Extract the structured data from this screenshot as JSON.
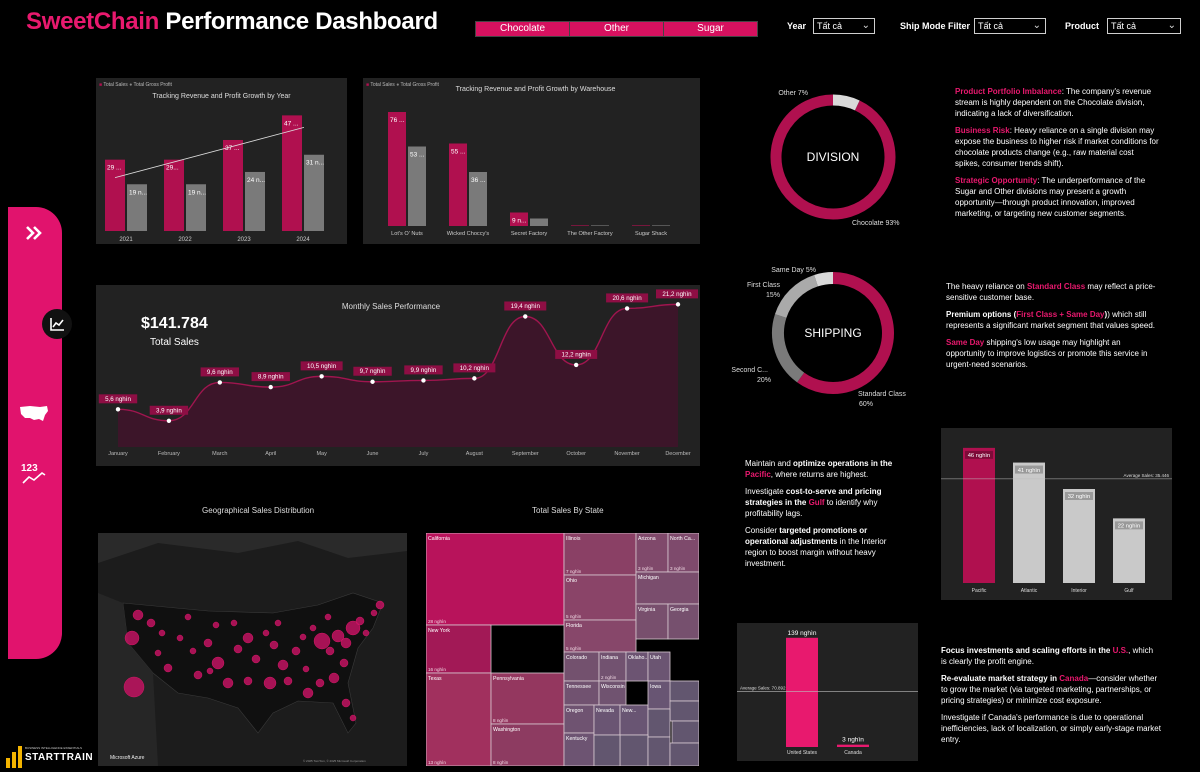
{
  "header": {
    "title_brand": "SweetChain",
    "title_rest": " Performance Dashboard",
    "division_buttons": [
      "Chocolate",
      "Other",
      "Sugar"
    ],
    "filters": [
      {
        "label": "Year",
        "value": "Tất cả"
      },
      {
        "label": "Ship Mode Filter",
        "value": "Tất cả"
      },
      {
        "label": "Product",
        "value": "Tất cả"
      }
    ]
  },
  "colors": {
    "accent": "#e8196e",
    "bar_primary": "#b0104f",
    "bar_secondary": "#7a7a7a",
    "panel": "#222222"
  },
  "sidebar": {
    "icons": [
      "double-chevron-right-icon",
      "line-chart-icon",
      "us-map-icon",
      "number-trend-icon"
    ]
  },
  "logos": {
    "starttrain_tag": "BUSINESS INTELLIGENCE ESSENTIALS",
    "starttrain": "STARTTRAIN",
    "azure": "Microsoft Azure"
  },
  "year_chart": {
    "title": "Tracking Revenue and Profit Growth by Year",
    "legend": [
      "Total Sales",
      "Total Gross Profit"
    ],
    "chart_data": {
      "type": "bar",
      "categories": [
        "2021",
        "2022",
        "2023",
        "2024"
      ],
      "series": [
        {
          "name": "Total Sales",
          "values": [
            29,
            29,
            37,
            47
          ],
          "labels": [
            "29 ...",
            "29...",
            "37 ...",
            "47 ..."
          ]
        },
        {
          "name": "Total Gross Profit",
          "values": [
            19,
            19,
            24,
            31
          ],
          "labels": [
            "19 n...",
            "19 n...",
            "24 n...",
            "31 n..."
          ]
        }
      ],
      "ylim": [
        0,
        50
      ]
    }
  },
  "warehouse_chart": {
    "title": "Tracking Revenue and Profit Growth by Warehouse",
    "legend": [
      "Total Sales",
      "Total Gross Profit"
    ],
    "chart_data": {
      "type": "bar",
      "categories": [
        "Lot's O' Nuts",
        "Wicked Choccy's",
        "Secret Factory",
        "The Other Factory",
        "Sugar Shack"
      ],
      "series": [
        {
          "name": "Total Sales",
          "values": [
            76,
            55,
            9,
            0.3,
            0.1
          ],
          "labels": [
            "76 ...",
            "55 ...",
            "9 n...",
            "",
            ""
          ]
        },
        {
          "name": "Total Gross Profit",
          "values": [
            53,
            36,
            5,
            0.2,
            0.05
          ],
          "labels": [
            "53 ...",
            "36 ...",
            "",
            "",
            ""
          ]
        }
      ],
      "ylim": [
        0,
        80
      ]
    }
  },
  "monthly_chart": {
    "title": "Monthly Sales Performance",
    "kpi_value": "$141.784",
    "kpi_label": "Total Sales",
    "chart_data": {
      "type": "area",
      "categories": [
        "January",
        "February",
        "March",
        "April",
        "May",
        "June",
        "July",
        "August",
        "September",
        "October",
        "November",
        "December"
      ],
      "values": [
        5.6,
        3.9,
        9.6,
        8.9,
        10.5,
        9.7,
        9.9,
        10.2,
        19.4,
        12.2,
        20.6,
        21.2
      ],
      "labels": [
        "5,6 nghìn",
        "3,9 nghìn",
        "9,6 nghìn",
        "8,9 nghìn",
        "10,5 nghìn",
        "9,7 nghìn",
        "9,9 nghìn",
        "10,2 nghìn",
        "19,4 nghìn",
        "12,2 nghìn",
        "20,6 nghìn",
        "21,2 nghìn"
      ],
      "ylim": [
        0,
        22
      ]
    }
  },
  "division_donut": {
    "center_label": "DIVISION",
    "chart_data": {
      "type": "pie",
      "labels": [
        "Chocolate",
        "Other"
      ],
      "values": [
        93,
        7
      ],
      "display": [
        "Chocolate 93%",
        "Other 7%"
      ],
      "colors": [
        "#b0104f",
        "#d9d9d9"
      ]
    }
  },
  "shipping_donut": {
    "center_label": "SHIPPING",
    "chart_data": {
      "type": "pie",
      "labels": [
        "Standard Class",
        "Second C...",
        "First Class",
        "Same Day"
      ],
      "values": [
        60,
        20,
        15,
        5
      ],
      "display": [
        "Standard Class",
        "Second C...",
        "First Class",
        "Same Day 5%"
      ],
      "display_pct": [
        "60%",
        "20%",
        "15%",
        ""
      ],
      "colors": [
        "#b0104f",
        "#7a7a7a",
        "#aaaaaa",
        "#d9d9d9"
      ]
    }
  },
  "division_insights": [
    {
      "head": "Product Portfolio Imbalance",
      "body": ": The company's revenue stream is highly dependent on the Chocolate division, indicating a lack of diversification."
    },
    {
      "head": "Business Risk",
      "body": ": Heavy reliance on a single division may expose the business to higher risk if market conditions for chocolate products change (e.g., raw material cost spikes, consumer trends shift)."
    },
    {
      "head": "Strategic Opportunity",
      "body": ": The underperformance of the Sugar and Other divisions may present a growth opportunity—through product innovation, improved marketing, or targeting new customer segments."
    }
  ],
  "shipping_insights": {
    "p1_a": "The heavy reliance on ",
    "p1_hl": "Standard Class",
    "p1_b": " may reflect a price-sensitive customer base.",
    "p2_a": "Premium options (",
    "p2_hl": "First Class + Same Day",
    "p2_b": ") which still represents a significant market segment that values speed.",
    "p3_hl": "Same Day",
    "p3_b": " shipping's low usage may highlight an opportunity to improve logistics or promote this service in urgent-need scenarios."
  },
  "region_insights": {
    "p1_a": "Maintain and ",
    "p1_b": "optimize operations in the ",
    "p1_hl": "Pacific",
    "p1_c": ", where returns are highest.",
    "p2_a": "Investigate ",
    "p2_b": "cost-to-serve and pricing strategies in the ",
    "p2_hl": "Gulf",
    "p2_c": " to identify why profitability lags.",
    "p3_a": "Consider ",
    "p3_b": "targeted promotions or operational adjustments",
    "p3_c": " in the Interior region to boost margin without heavy investment."
  },
  "region_chart": {
    "avg_label": "Average Sales: 35.446",
    "chart_data": {
      "type": "bar",
      "categories": [
        "Pacific",
        "Atlantic",
        "Interior",
        "Gulf"
      ],
      "values": [
        46,
        41,
        32,
        22
      ],
      "labels": [
        "46 nghìn",
        "41 nghìn",
        "32 nghìn",
        "22 nghìn"
      ],
      "average": 35.446,
      "ylim": [
        0,
        48
      ]
    }
  },
  "country_chart": {
    "avg_label": "Average Sales: 70.892",
    "chart_data": {
      "type": "bar",
      "categories": [
        "United States",
        "Canada"
      ],
      "values": [
        139,
        3
      ],
      "labels": [
        "139 nghìn",
        "3 nghìn"
      ],
      "average": 70.892,
      "ylim": [
        0,
        140
      ]
    }
  },
  "country_insights": {
    "p1_b": "Focus investments and scaling efforts in the ",
    "p1_hl": "U.S.",
    "p1_c": ", which is clearly the profit engine.",
    "p2_b": "Re-evaluate market strategy in ",
    "p2_hl": "Canada",
    "p2_c": "—consider whether to grow the market (via targeted marketing, partnerships, or pricing strategies) or minimize cost exposure.",
    "p3": "Investigate if Canada's performance is due to operational inefficiencies, lack of localization, or simply early-stage market entry."
  },
  "map": {
    "title": "Geographical Sales Distribution",
    "footer": "© 2025 TomTom, © 2025 Microsoft Corporation"
  },
  "treemap": {
    "title": "Total Sales By State",
    "cells": [
      {
        "name": "California",
        "value": "28 nghìn"
      },
      {
        "name": "New York",
        "value": "16 nghìn"
      },
      {
        "name": "Texas",
        "value": "13 nghìn"
      },
      {
        "name": "Pennsylvania",
        "value": "8 nghìn"
      },
      {
        "name": "Washington",
        "value": "8 nghìn"
      },
      {
        "name": "Illinois",
        "value": "7 nghìn"
      },
      {
        "name": "Ohio",
        "value": "5 nghìn"
      },
      {
        "name": "Florida",
        "value": "5 nghìn"
      },
      {
        "name": "Arizona",
        "value": "3 nghìn"
      },
      {
        "name": "North Ca...",
        "value": "3 nghìn"
      },
      {
        "name": "Michigan",
        "value": ""
      },
      {
        "name": "Virginia",
        "value": ""
      },
      {
        "name": "Georgia",
        "value": ""
      },
      {
        "name": "Colorado",
        "value": ""
      },
      {
        "name": "Indiana",
        "value": "2 nghìn"
      },
      {
        "name": "Tennessee",
        "value": ""
      },
      {
        "name": "Wisconsin",
        "value": ""
      },
      {
        "name": "Oregon",
        "value": ""
      },
      {
        "name": "Kentucky",
        "value": ""
      },
      {
        "name": "Oklaho...",
        "value": ""
      },
      {
        "name": "Utah",
        "value": ""
      },
      {
        "name": "Nevada",
        "value": ""
      },
      {
        "name": "New...",
        "value": ""
      },
      {
        "name": "Iowa",
        "value": ""
      }
    ]
  }
}
